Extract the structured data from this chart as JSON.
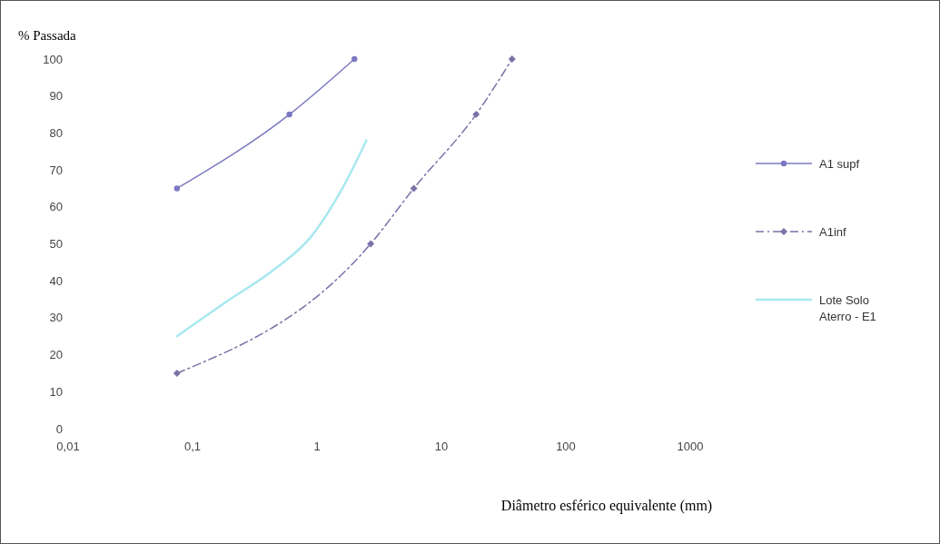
{
  "chart_data": {
    "type": "line",
    "ylabel": "% Passada",
    "xlabel": "Diâmetro esférico equivalente (mm)",
    "log": "x",
    "xlim": [
      0.01,
      1000
    ],
    "xticks": [
      {
        "value": 0.01,
        "label": "0,01"
      },
      {
        "value": 0.1,
        "label": "0,1"
      },
      1,
      10,
      100,
      1000
    ],
    "ylim": [
      0,
      100
    ],
    "yticks": [
      0,
      10,
      20,
      30,
      40,
      50,
      60,
      70,
      80,
      90,
      100
    ],
    "grid": false,
    "legend": "right",
    "series": [
      {
        "name": "A1 supf",
        "color": "#7b78c0",
        "x": [
          0.075,
          0.6,
          2.0
        ],
        "values": [
          65,
          85,
          100
        ],
        "marker": "circle",
        "line_style": "solid"
      },
      {
        "name": "A1inf",
        "color": "#7a72a8",
        "x": [
          0.075,
          2.7,
          6,
          19,
          37
        ],
        "values": [
          15,
          50,
          65,
          85,
          100
        ],
        "marker": "diamond",
        "line_style": "dashdot"
      },
      {
        "name": "Lote Solo Aterro - E1",
        "color": "#a8e8f0",
        "x": [
          0.075,
          0.2,
          0.45,
          0.9,
          1.6,
          2.5
        ],
        "values": [
          25,
          35,
          43,
          52,
          65,
          78
        ],
        "marker": "none",
        "line_style": "solid"
      }
    ]
  }
}
